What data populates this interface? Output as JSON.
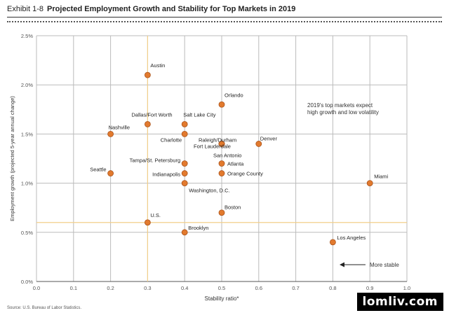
{
  "header": {
    "exhibit": "Exhibit 1-8",
    "title": "Projected Employment Growth and Stability for Top Markets in 2019"
  },
  "source": "Source: U.S. Bureau of Labor Statistics.",
  "watermark": "lomliv.com",
  "colors": {
    "point_fill": "#e27a2e",
    "point_stroke": "#a9521a",
    "grid": "#bbbbbb",
    "reference_line": "#f2cf8a",
    "axis_text": "#555555"
  },
  "chart_data": {
    "type": "scatter",
    "xlabel": "Stability ratio*",
    "ylabel": "Employment growth (projected 5-year annual change)",
    "xlim": [
      0.0,
      1.0
    ],
    "ylim": [
      0.0,
      2.5
    ],
    "x_ticks": [
      "0.0",
      "0.1",
      "0.2",
      "0.3",
      "0.4",
      "0.5",
      "0.6",
      "0.7",
      "0.8",
      "0.9",
      "1.0"
    ],
    "y_ticks": [
      "0.0%",
      "0.5%",
      "1.0%",
      "1.5%",
      "2.0%",
      "2.5%"
    ],
    "grid": true,
    "reference_lines": {
      "x": 0.3,
      "y": 0.6
    },
    "points": [
      {
        "label": "Austin",
        "x": 0.3,
        "y": 2.1
      },
      {
        "label": "Orlando",
        "x": 0.5,
        "y": 1.8
      },
      {
        "label": "Dallas/Fort Worth",
        "x": 0.3,
        "y": 1.6
      },
      {
        "label": "Salt Lake City",
        "x": 0.4,
        "y": 1.6
      },
      {
        "label": "Nashville",
        "x": 0.2,
        "y": 1.5
      },
      {
        "label": "Charlotte",
        "x": 0.4,
        "y": 1.5
      },
      {
        "label": "Raleigh/Durham",
        "x": 0.5,
        "y": 1.4
      },
      {
        "label": "Fort Lauderdale",
        "x": 0.5,
        "y": 1.4
      },
      {
        "label": "San Antonio",
        "x": 0.5,
        "y": 1.4
      },
      {
        "label": "Denver",
        "x": 0.6,
        "y": 1.4
      },
      {
        "label": "Tampa/St. Petersburg",
        "x": 0.4,
        "y": 1.2
      },
      {
        "label": "Atlanta",
        "x": 0.5,
        "y": 1.2
      },
      {
        "label": "Seattle",
        "x": 0.2,
        "y": 1.1
      },
      {
        "label": "Indianapolis",
        "x": 0.4,
        "y": 1.1
      },
      {
        "label": "Orange County",
        "x": 0.5,
        "y": 1.1
      },
      {
        "label": "Washington, D.C.",
        "x": 0.4,
        "y": 1.0
      },
      {
        "label": "Miami",
        "x": 0.9,
        "y": 1.0
      },
      {
        "label": "Boston",
        "x": 0.5,
        "y": 0.7
      },
      {
        "label": "U.S.",
        "x": 0.3,
        "y": 0.6
      },
      {
        "label": "Brooklyn",
        "x": 0.4,
        "y": 0.5
      },
      {
        "label": "Los Angeles",
        "x": 0.8,
        "y": 0.4
      }
    ],
    "annotations": [
      {
        "text": "2019's top markets expect high growth and low volatility"
      },
      {
        "text": "More stable"
      }
    ]
  }
}
